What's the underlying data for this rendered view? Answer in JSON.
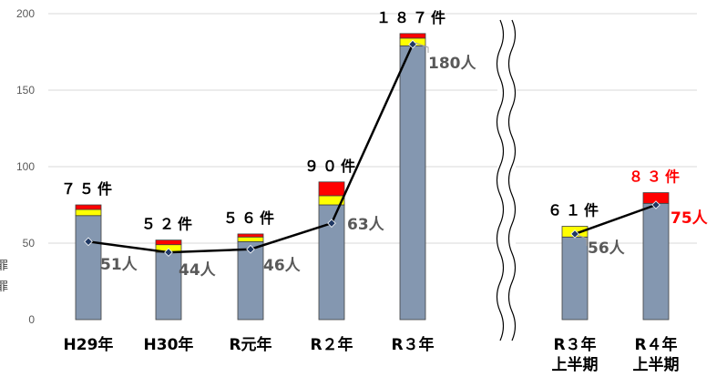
{
  "chart_data": {
    "type": "bar",
    "stacked": true,
    "ylim": [
      0,
      200
    ],
    "yticks": [
      "0",
      "50",
      "100",
      "150",
      "200"
    ],
    "grid": true,
    "axis_break": true,
    "categories": [
      {
        "label": [
          "H29年"
        ],
        "total_label": "７５件",
        "people_label": "51人"
      },
      {
        "label": [
          "H30年"
        ],
        "total_label": "５２件",
        "people_label": "44人"
      },
      {
        "label": [
          "R元年"
        ],
        "total_label": "５６件",
        "people_label": "46人"
      },
      {
        "label": [
          "R２年"
        ],
        "total_label": "９０件",
        "people_label": "63人"
      },
      {
        "label": [
          "R３年"
        ],
        "total_label": "１８７件",
        "people_label": "180人"
      },
      {
        "label": [
          "R３年",
          "上半期"
        ],
        "total_label": "６１件",
        "people_label": "56人"
      },
      {
        "label": [
          "R４年",
          "上半期"
        ],
        "total_label": "８３件",
        "people_label": "75人",
        "highlight": true
      }
    ],
    "series": [
      {
        "color": "#8497b0",
        "values": [
          68,
          44,
          51,
          75,
          179,
          54,
          76
        ]
      },
      {
        "color": "#ffff00",
        "values": [
          4,
          5,
          3,
          6,
          5,
          7,
          0
        ]
      },
      {
        "color": "#ff0000",
        "values": [
          3,
          3,
          2,
          9,
          3,
          0,
          7
        ]
      }
    ],
    "line": {
      "color": "#000000",
      "marker_color": "#1f3864",
      "segments": [
        [
          51,
          44,
          46,
          63,
          180
        ],
        [
          56,
          75
        ]
      ]
    },
    "highlight_color": "#ff0000",
    "left_edge_fragments": [
      "罪",
      "罪"
    ]
  }
}
